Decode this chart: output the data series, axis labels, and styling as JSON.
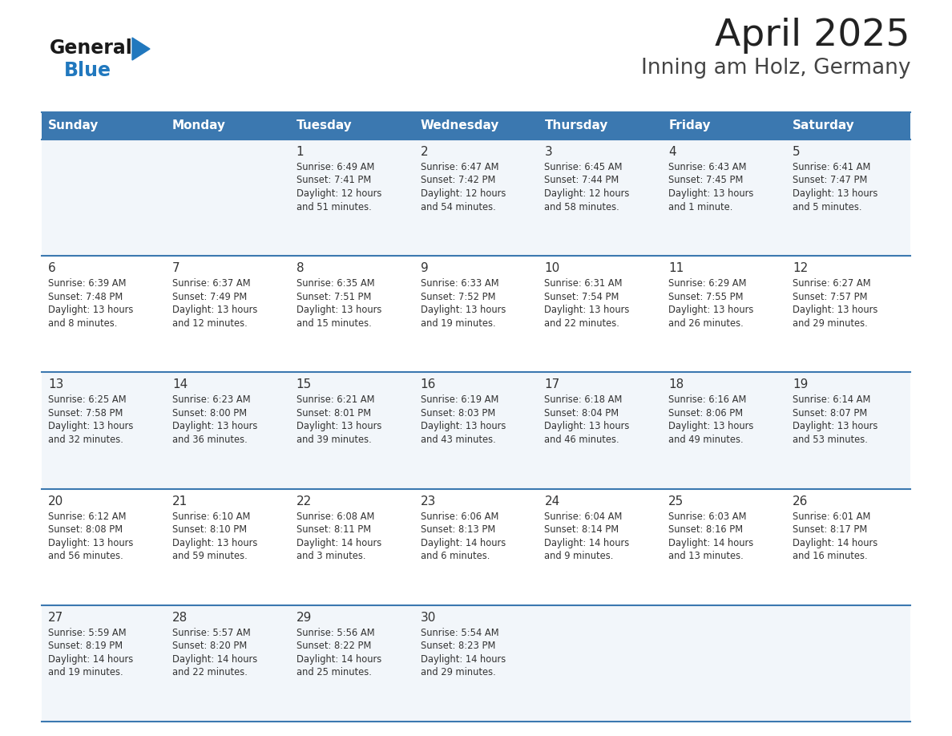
{
  "title": "April 2025",
  "subtitle": "Inning am Holz, Germany",
  "header_bg": "#3B78B0",
  "header_text_color": "#FFFFFF",
  "weekdays": [
    "Sunday",
    "Monday",
    "Tuesday",
    "Wednesday",
    "Thursday",
    "Friday",
    "Saturday"
  ],
  "row_bg_white": "#FFFFFF",
  "row_bg_gray": "#F2F6FA",
  "cell_text_color": "#333333",
  "grid_line_color": "#3B78B0",
  "background_color": "#FFFFFF",
  "title_color": "#222222",
  "subtitle_color": "#444444",
  "logo_general_color": "#1A1A1A",
  "logo_blue_color": "#2178BE",
  "calendar": [
    [
      {
        "day": "",
        "info": ""
      },
      {
        "day": "",
        "info": ""
      },
      {
        "day": "1",
        "info": "Sunrise: 6:49 AM\nSunset: 7:41 PM\nDaylight: 12 hours\nand 51 minutes."
      },
      {
        "day": "2",
        "info": "Sunrise: 6:47 AM\nSunset: 7:42 PM\nDaylight: 12 hours\nand 54 minutes."
      },
      {
        "day": "3",
        "info": "Sunrise: 6:45 AM\nSunset: 7:44 PM\nDaylight: 12 hours\nand 58 minutes."
      },
      {
        "day": "4",
        "info": "Sunrise: 6:43 AM\nSunset: 7:45 PM\nDaylight: 13 hours\nand 1 minute."
      },
      {
        "day": "5",
        "info": "Sunrise: 6:41 AM\nSunset: 7:47 PM\nDaylight: 13 hours\nand 5 minutes."
      }
    ],
    [
      {
        "day": "6",
        "info": "Sunrise: 6:39 AM\nSunset: 7:48 PM\nDaylight: 13 hours\nand 8 minutes."
      },
      {
        "day": "7",
        "info": "Sunrise: 6:37 AM\nSunset: 7:49 PM\nDaylight: 13 hours\nand 12 minutes."
      },
      {
        "day": "8",
        "info": "Sunrise: 6:35 AM\nSunset: 7:51 PM\nDaylight: 13 hours\nand 15 minutes."
      },
      {
        "day": "9",
        "info": "Sunrise: 6:33 AM\nSunset: 7:52 PM\nDaylight: 13 hours\nand 19 minutes."
      },
      {
        "day": "10",
        "info": "Sunrise: 6:31 AM\nSunset: 7:54 PM\nDaylight: 13 hours\nand 22 minutes."
      },
      {
        "day": "11",
        "info": "Sunrise: 6:29 AM\nSunset: 7:55 PM\nDaylight: 13 hours\nand 26 minutes."
      },
      {
        "day": "12",
        "info": "Sunrise: 6:27 AM\nSunset: 7:57 PM\nDaylight: 13 hours\nand 29 minutes."
      }
    ],
    [
      {
        "day": "13",
        "info": "Sunrise: 6:25 AM\nSunset: 7:58 PM\nDaylight: 13 hours\nand 32 minutes."
      },
      {
        "day": "14",
        "info": "Sunrise: 6:23 AM\nSunset: 8:00 PM\nDaylight: 13 hours\nand 36 minutes."
      },
      {
        "day": "15",
        "info": "Sunrise: 6:21 AM\nSunset: 8:01 PM\nDaylight: 13 hours\nand 39 minutes."
      },
      {
        "day": "16",
        "info": "Sunrise: 6:19 AM\nSunset: 8:03 PM\nDaylight: 13 hours\nand 43 minutes."
      },
      {
        "day": "17",
        "info": "Sunrise: 6:18 AM\nSunset: 8:04 PM\nDaylight: 13 hours\nand 46 minutes."
      },
      {
        "day": "18",
        "info": "Sunrise: 6:16 AM\nSunset: 8:06 PM\nDaylight: 13 hours\nand 49 minutes."
      },
      {
        "day": "19",
        "info": "Sunrise: 6:14 AM\nSunset: 8:07 PM\nDaylight: 13 hours\nand 53 minutes."
      }
    ],
    [
      {
        "day": "20",
        "info": "Sunrise: 6:12 AM\nSunset: 8:08 PM\nDaylight: 13 hours\nand 56 minutes."
      },
      {
        "day": "21",
        "info": "Sunrise: 6:10 AM\nSunset: 8:10 PM\nDaylight: 13 hours\nand 59 minutes."
      },
      {
        "day": "22",
        "info": "Sunrise: 6:08 AM\nSunset: 8:11 PM\nDaylight: 14 hours\nand 3 minutes."
      },
      {
        "day": "23",
        "info": "Sunrise: 6:06 AM\nSunset: 8:13 PM\nDaylight: 14 hours\nand 6 minutes."
      },
      {
        "day": "24",
        "info": "Sunrise: 6:04 AM\nSunset: 8:14 PM\nDaylight: 14 hours\nand 9 minutes."
      },
      {
        "day": "25",
        "info": "Sunrise: 6:03 AM\nSunset: 8:16 PM\nDaylight: 14 hours\nand 13 minutes."
      },
      {
        "day": "26",
        "info": "Sunrise: 6:01 AM\nSunset: 8:17 PM\nDaylight: 14 hours\nand 16 minutes."
      }
    ],
    [
      {
        "day": "27",
        "info": "Sunrise: 5:59 AM\nSunset: 8:19 PM\nDaylight: 14 hours\nand 19 minutes."
      },
      {
        "day": "28",
        "info": "Sunrise: 5:57 AM\nSunset: 8:20 PM\nDaylight: 14 hours\nand 22 minutes."
      },
      {
        "day": "29",
        "info": "Sunrise: 5:56 AM\nSunset: 8:22 PM\nDaylight: 14 hours\nand 25 minutes."
      },
      {
        "day": "30",
        "info": "Sunrise: 5:54 AM\nSunset: 8:23 PM\nDaylight: 14 hours\nand 29 minutes."
      },
      {
        "day": "",
        "info": ""
      },
      {
        "day": "",
        "info": ""
      },
      {
        "day": "",
        "info": ""
      }
    ]
  ]
}
